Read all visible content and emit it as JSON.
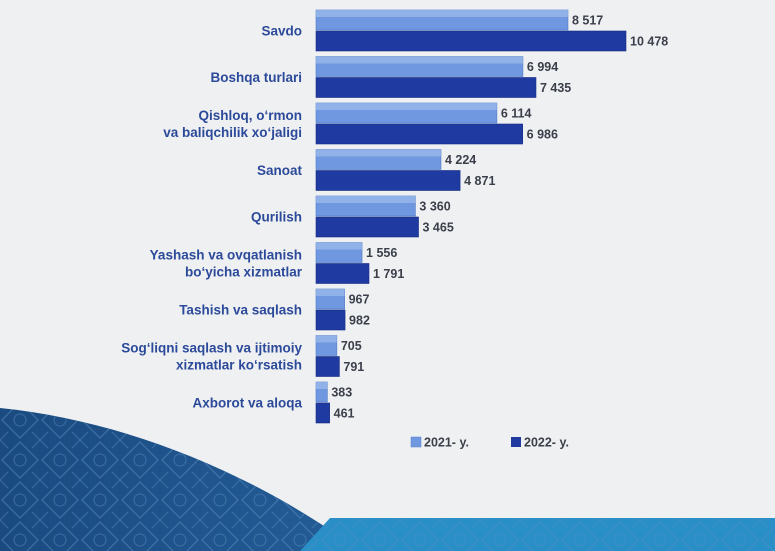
{
  "chart_data": {
    "type": "bar",
    "orientation": "horizontal",
    "categories": [
      [
        "Savdo"
      ],
      [
        "Boshqa turlari"
      ],
      [
        "Qishloq, o‘rmon",
        "va baliqchilik xo‘jaligi"
      ],
      [
        "Sanoat"
      ],
      [
        "Qurilish"
      ],
      [
        "Yashash va ovqatlanish",
        "bo‘yicha xizmatlar"
      ],
      [
        "Tashish va saqlash"
      ],
      [
        "Sog‘liqni saqlash va ijtimoiy",
        "xizmatlar ko‘rsatish"
      ],
      [
        "Axborot va aloqa"
      ]
    ],
    "series": [
      {
        "name": "2021- y.",
        "color": "#6f98e0",
        "values": [
          8517,
          6994,
          6114,
          4224,
          3360,
          1556,
          967,
          705,
          383
        ],
        "labels": [
          "8 517",
          "6 994",
          "6 114",
          "4 224",
          "3 360",
          "1 556",
          "967",
          "705",
          "383"
        ]
      },
      {
        "name": "2022- y.",
        "color": "#1f3aa0",
        "values": [
          10478,
          7435,
          6986,
          4871,
          3465,
          1791,
          982,
          791,
          461
        ],
        "labels": [
          "10 478",
          "7 435",
          "6 986",
          "4 871",
          "3 465",
          "1 791",
          "982",
          "791",
          "461"
        ]
      }
    ],
    "xlim": [
      0,
      10478
    ],
    "grid": false,
    "legend_position": "bottom"
  },
  "colors": {
    "background": "#eff0f2",
    "pattern_dark": "#1d4f86",
    "pattern_light": "#2f8fc4",
    "category_text": "#2c4a9a",
    "value_text": "#3a3f4a"
  }
}
